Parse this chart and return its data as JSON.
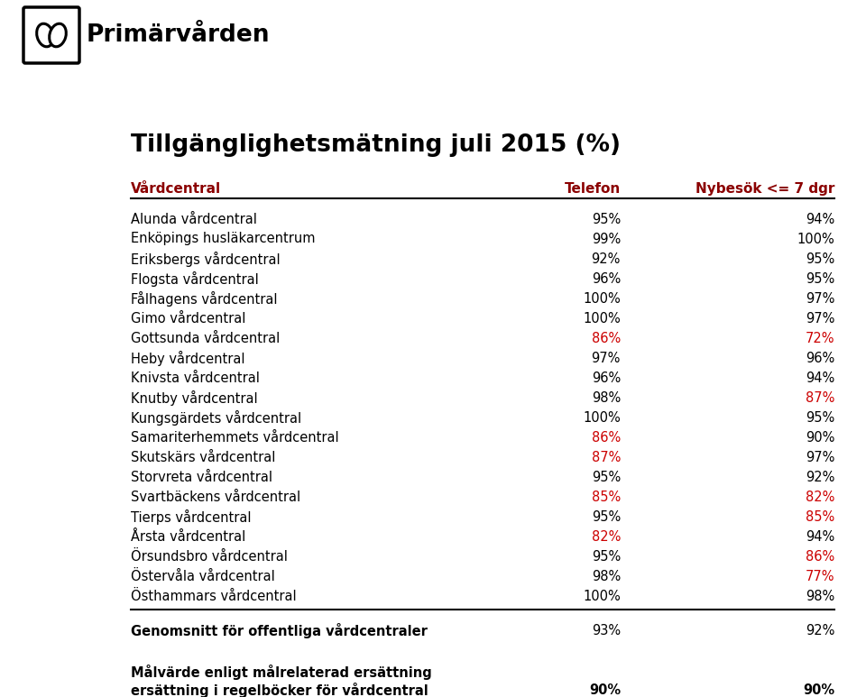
{
  "title": "Tillgänglighetsmätning juli 2015 (%)",
  "col_header_name": "Vårdcentral",
  "col_header_telefon": "Telefon",
  "col_header_nybesok": "Nybesök <= 7 dgr",
  "rows": [
    {
      "name": "Alunda vårdcentral",
      "telefon": "95%",
      "nybesok": "94%",
      "telefon_red": false,
      "nybesok_red": false
    },
    {
      "name": "Enköpings husläkarcentrum",
      "telefon": "99%",
      "nybesok": "100%",
      "telefon_red": false,
      "nybesok_red": false
    },
    {
      "name": "Eriksbergs vårdcentral",
      "telefon": "92%",
      "nybesok": "95%",
      "telefon_red": false,
      "nybesok_red": false
    },
    {
      "name": "Flogsta vårdcentral",
      "telefon": "96%",
      "nybesok": "95%",
      "telefon_red": false,
      "nybesok_red": false
    },
    {
      "name": "Fålhagens vårdcentral",
      "telefon": "100%",
      "nybesok": "97%",
      "telefon_red": false,
      "nybesok_red": false
    },
    {
      "name": "Gimo vårdcentral",
      "telefon": "100%",
      "nybesok": "97%",
      "telefon_red": false,
      "nybesok_red": false
    },
    {
      "name": "Gottsunda vårdcentral",
      "telefon": "86%",
      "nybesok": "72%",
      "telefon_red": true,
      "nybesok_red": true
    },
    {
      "name": "Heby vårdcentral",
      "telefon": "97%",
      "nybesok": "96%",
      "telefon_red": false,
      "nybesok_red": false
    },
    {
      "name": "Knivsta vårdcentral",
      "telefon": "96%",
      "nybesok": "94%",
      "telefon_red": false,
      "nybesok_red": false
    },
    {
      "name": "Knutby vårdcentral",
      "telefon": "98%",
      "nybesok": "87%",
      "telefon_red": false,
      "nybesok_red": true
    },
    {
      "name": "Kungsgärdets vårdcentral",
      "telefon": "100%",
      "nybesok": "95%",
      "telefon_red": false,
      "nybesok_red": false
    },
    {
      "name": "Samariterhemmets vårdcentral",
      "telefon": "86%",
      "nybesok": "90%",
      "telefon_red": true,
      "nybesok_red": false
    },
    {
      "name": "Skutskärs vårdcentral",
      "telefon": "87%",
      "nybesok": "97%",
      "telefon_red": true,
      "nybesok_red": false
    },
    {
      "name": "Storvreta vårdcentral",
      "telefon": "95%",
      "nybesok": "92%",
      "telefon_red": false,
      "nybesok_red": false
    },
    {
      "name": "Svartbäckens vårdcentral",
      "telefon": "85%",
      "nybesok": "82%",
      "telefon_red": true,
      "nybesok_red": true
    },
    {
      "name": "Tierps vårdcentral",
      "telefon": "95%",
      "nybesok": "85%",
      "telefon_red": false,
      "nybesok_red": true
    },
    {
      "name": "Årsta vårdcentral",
      "telefon": "82%",
      "nybesok": "94%",
      "telefon_red": true,
      "nybesok_red": false
    },
    {
      "name": "Örsundsbro vårdcentral",
      "telefon": "95%",
      "nybesok": "86%",
      "telefon_red": false,
      "nybesok_red": true
    },
    {
      "name": "Östervåla vårdcentral",
      "telefon": "98%",
      "nybesok": "77%",
      "telefon_red": false,
      "nybesok_red": true
    },
    {
      "name": "Östhammars vårdcentral",
      "telefon": "100%",
      "nybesok": "98%",
      "telefon_red": false,
      "nybesok_red": false
    }
  ],
  "genomsnitt_label": "Genomsnitt för offentliga vårdcentraler",
  "genomsnitt_telefon": "93%",
  "genomsnitt_nybesok": "92%",
  "malvarde_line1": "Målvärde enligt målrelaterad ersättning",
  "malvarde_line2": "ersättning i regelböcker för vårdcentral",
  "malvarde_telefon": "90%",
  "malvarde_nybesok": "90%",
  "header_color": "#8B0000",
  "red_color": "#CC0000",
  "black_color": "#000000",
  "bg_color": "#FFFFFF"
}
